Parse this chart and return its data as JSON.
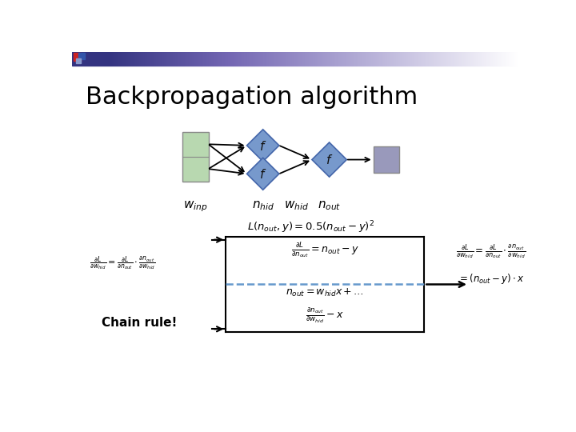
{
  "title": "Backpropagation algorithm",
  "title_fontsize": 22,
  "bg_color": "#ffffff",
  "green_rect_color": "#b8d8b0",
  "green_rect_border": "#888888",
  "purple_rect_color": "#9999bb",
  "purple_rect_border": "#888888",
  "diamond_color": "#7799cc",
  "diamond_border": "#4466aa",
  "arrow_color": "#111111",
  "dashed_color": "#6699cc",
  "label_winp": "$w_{inp}$",
  "label_nhid": "$n_{hid}$",
  "label_whid": "$w_{hid}$",
  "label_nout": "$n_{out}$",
  "chain_rule_text": "Chain rule!"
}
